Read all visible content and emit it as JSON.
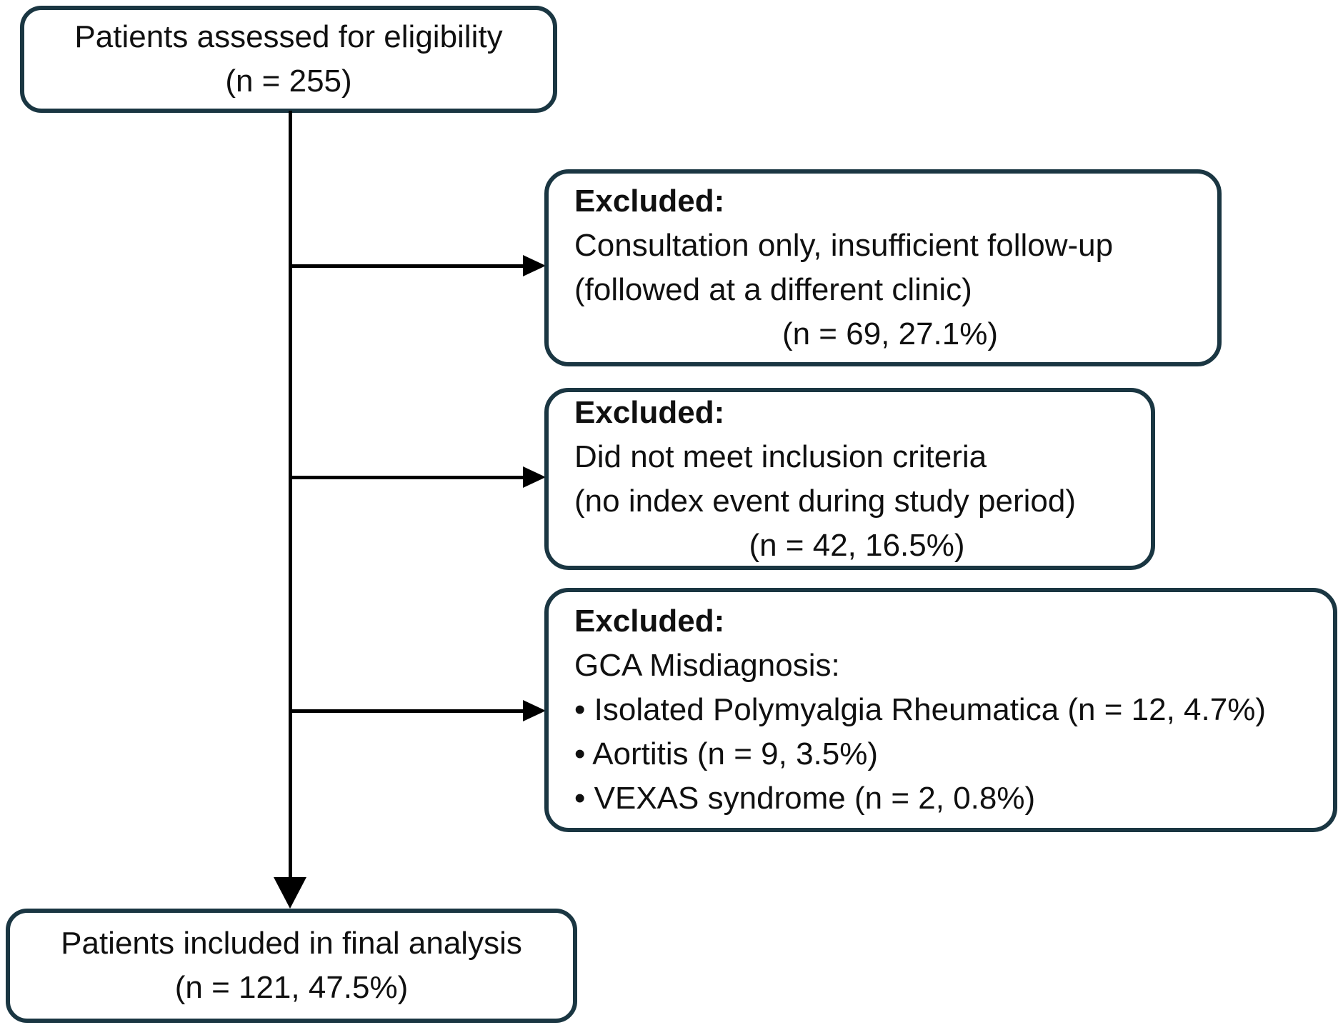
{
  "diagram": {
    "top_box": {
      "line1": "Patients assessed for eligibility",
      "count": "(n = 255)"
    },
    "excluded_boxes": [
      {
        "title": "Excluded:",
        "lines": [
          "Consultation only, insufficient follow-up",
          "(followed at a different clinic)"
        ],
        "count": "(n = 69, 27.1%)"
      },
      {
        "title": "Excluded:",
        "lines": [
          "Did not meet inclusion criteria",
          "(no index event during study period)"
        ],
        "count": "(n = 42, 16.5%)"
      },
      {
        "title": "Excluded:",
        "lines": [
          "GCA Misdiagnosis:",
          "• Isolated Polymyalgia Rheumatica (n = 12, 4.7%)",
          "• Aortitis (n = 9, 3.5%)",
          "• VEXAS syndrome (n = 2, 0.8%)"
        ]
      }
    ],
    "bottom_box": {
      "line1": "Patients included in final analysis",
      "count": "(n = 121, 47.5%)"
    },
    "colors": {
      "box_border": "#1a3642",
      "text": "#101010",
      "arrow": "#000000",
      "background": "#ffffff"
    }
  }
}
